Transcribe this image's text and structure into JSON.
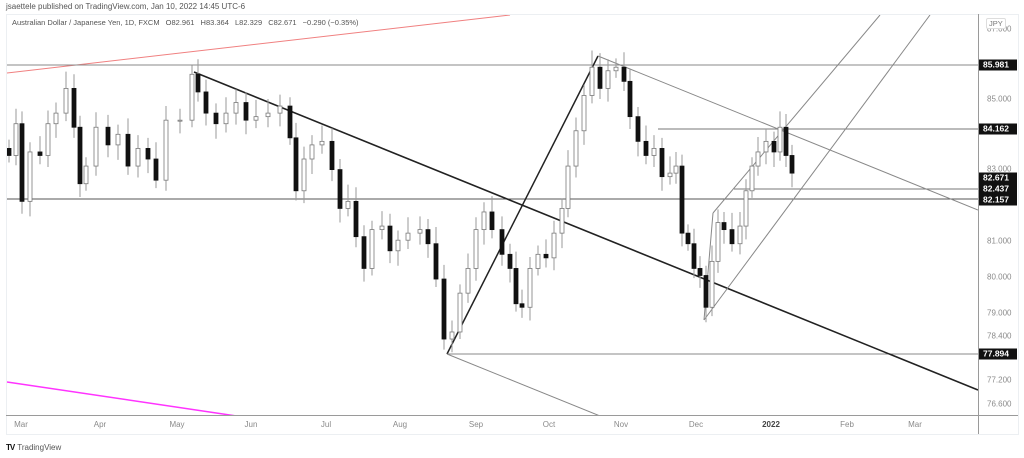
{
  "header": {
    "publisher_line": "jsaettele published on TradingView.com, Jan 10, 2022 14:45 UTC-6"
  },
  "legend": {
    "symbol": "Australian Dollar / Japanese Yen, 1D, FXCM",
    "open": "O82.961",
    "high": "H83.364",
    "low": "L82.329",
    "close": "C82.671",
    "change": "−0.290 (−0.35%)"
  },
  "price_axis": {
    "currency": "JPY",
    "ticks": [
      "87.000",
      "85.000",
      "83.000",
      "81.000",
      "80.000",
      "79.000",
      "78.400",
      "77.200",
      "76.600"
    ],
    "labels": [
      "85.981",
      "84.162",
      "82.671",
      "82.437",
      "82.157",
      "77.894"
    ]
  },
  "time_axis": {
    "labels": [
      "Mar",
      "Apr",
      "May",
      "Jun",
      "Jul",
      "Aug",
      "Sep",
      "Oct",
      "Nov",
      "Dec",
      "2022",
      "Feb",
      "Mar"
    ]
  },
  "footer": {
    "brand_mark": "TV",
    "brand_name": "TradingView"
  },
  "colors": {
    "up_candle_fill": "#ffffff",
    "up_candle_border": "#7a7a7a",
    "down_candle": "#111111",
    "wick": "#9a9a9a",
    "trendline_black": "#222222",
    "trendline_gray": "#888888",
    "red_line": "#f08080",
    "magenta_line": "#ff33ff",
    "label_bg": "#111111"
  },
  "chart_data": {
    "type": "candlestick",
    "title": "Australian Dollar / Japanese Yen, 1D, FXCM",
    "xlabel": "",
    "ylabel": "JPY",
    "x_ticks": [
      "Mar",
      "Apr",
      "May",
      "Jun",
      "Jul",
      "Aug",
      "Sep",
      "Oct",
      "Nov",
      "Dec",
      "2022",
      "Feb",
      "Mar"
    ],
    "y_ticks": [
      87.0,
      85.0,
      83.0,
      81.0,
      80.0,
      79.0,
      78.4,
      77.2,
      76.6
    ],
    "ylim": [
      76.2,
      87.4
    ],
    "last_bar": {
      "open": 82.961,
      "high": 83.364,
      "low": 82.329,
      "close": 82.671,
      "change": -0.29,
      "change_pct": -0.35
    },
    "horizontal_levels": [
      85.981,
      84.162,
      82.437,
      82.157,
      77.894
    ],
    "price_labels": [
      85.981,
      84.162,
      82.671,
      82.437,
      82.157,
      77.894
    ],
    "approx_closes_by_month": [
      {
        "month": "Mar 2021",
        "close": 83.4
      },
      {
        "month": "Apr 2021",
        "close": 84.3
      },
      {
        "month": "May 2021",
        "close": 84.6
      },
      {
        "month": "Jun 2021",
        "close": 83.4
      },
      {
        "month": "Jul 2021",
        "close": 80.8
      },
      {
        "month": "Aug 2021",
        "close": 80.4
      },
      {
        "month": "Sep 2021",
        "close": 80.5
      },
      {
        "month": "Oct 2021",
        "close": 85.6
      },
      {
        "month": "Nov 2021",
        "close": 80.3
      },
      {
        "month": "Dec 2021",
        "close": 83.2
      },
      {
        "month": "Jan 2022",
        "close": 82.671
      }
    ],
    "key_swings": [
      {
        "label": "May high",
        "price": 85.8
      },
      {
        "label": "Aug low",
        "price": 77.894
      },
      {
        "label": "Oct high",
        "price": 86.25
      },
      {
        "label": "Dec low",
        "price": 78.8
      },
      {
        "label": "Jan high",
        "price": 84.162
      }
    ],
    "grid": false,
    "legend_position": "top-left"
  }
}
